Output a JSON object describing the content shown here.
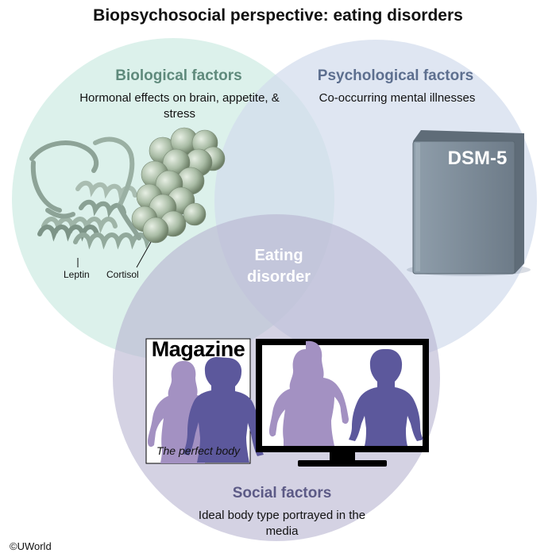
{
  "title": "Biopsychosocial perspective: eating disorders",
  "biological": {
    "heading": "Biological factors",
    "description": "Hormonal effects on brain, appetite, & stress",
    "labels": {
      "leptin": "Leptin",
      "cortisol": "Cortisol"
    }
  },
  "psychological": {
    "heading": "Psychological factors",
    "description": "Co-occurring mental illnesses",
    "book_title": "DSM-5"
  },
  "social": {
    "heading": "Social factors",
    "description": "Ideal body type portrayed in the media",
    "magazine_title": "Magazine",
    "magazine_caption": "The perfect body"
  },
  "center_label": "Eating disorder",
  "copyright": "©UWorld",
  "colors": {
    "biological_circle": "#d3ede6",
    "psychological_circle": "#d1dced",
    "social_circle": "#c4c1d8",
    "biological_heading": "#5f8a7c",
    "psychological_heading": "#5d6f8f",
    "social_heading": "#5c5a86",
    "female_silhouette": "#a391c2",
    "male_silhouette": "#5c589c",
    "book": "#7f8d9a"
  },
  "icons": [
    "leptin-protein-structure",
    "cortisol-molecule",
    "dsm5-book",
    "magazine-cover",
    "television-screen",
    "female-silhouette",
    "male-silhouette"
  ]
}
